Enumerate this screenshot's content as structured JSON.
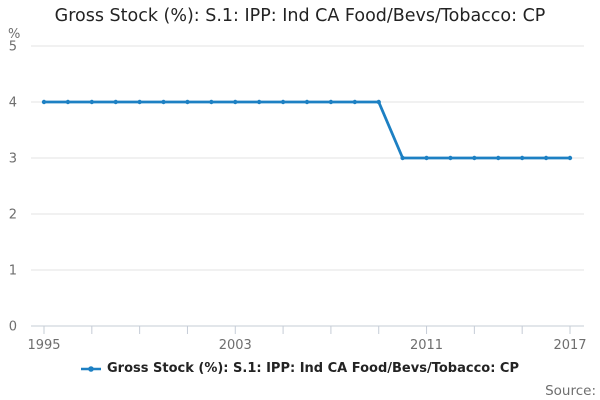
{
  "title": "Gross Stock (%): S.1: IPP: Ind CA Food/Bevs/Tobacco: CP",
  "unit_label": "%",
  "source_label": "Source:",
  "legend": {
    "series_label": "Gross Stock (%): S.1: IPP: Ind CA Food/Bevs/Tobacco: CP"
  },
  "colors": {
    "line": "#1d80c3",
    "grid": "#e3e3e3",
    "axis": "#c5ccd6",
    "tick_label": "#6e6e6e",
    "title_text": "#232323",
    "legend_text": "#232323",
    "source_text": "#6e6e6e"
  },
  "chart_data": {
    "type": "line",
    "title": "Gross Stock (%): S.1: IPP: Ind CA Food/Bevs/Tobacco: CP",
    "xlabel": "",
    "ylabel": "%",
    "ylim": [
      0,
      5
    ],
    "y_ticks": [
      0,
      1,
      2,
      3,
      4,
      5
    ],
    "x": [
      1995,
      1996,
      1997,
      1998,
      1999,
      2000,
      2001,
      2002,
      2003,
      2004,
      2005,
      2006,
      2007,
      2008,
      2009,
      2010,
      2011,
      2012,
      2013,
      2014,
      2015,
      2016,
      2017
    ],
    "series": [
      {
        "name": "Gross Stock (%): S.1: IPP: Ind CA Food/Bevs/Tobacco: CP",
        "values": [
          4,
          4,
          4,
          4,
          4,
          4,
          4,
          4,
          4,
          4,
          4,
          4,
          4,
          4,
          4,
          3,
          3,
          3,
          3,
          3,
          3,
          3,
          3
        ]
      }
    ],
    "x_tick_years": [
      1995,
      1997,
      1999,
      2001,
      2003,
      2005,
      2007,
      2009,
      2011,
      2013,
      2015,
      2017
    ],
    "x_label_years": [
      1995,
      2003,
      2011,
      2017
    ],
    "grid": true,
    "legend_position": "bottom",
    "markers": true
  }
}
